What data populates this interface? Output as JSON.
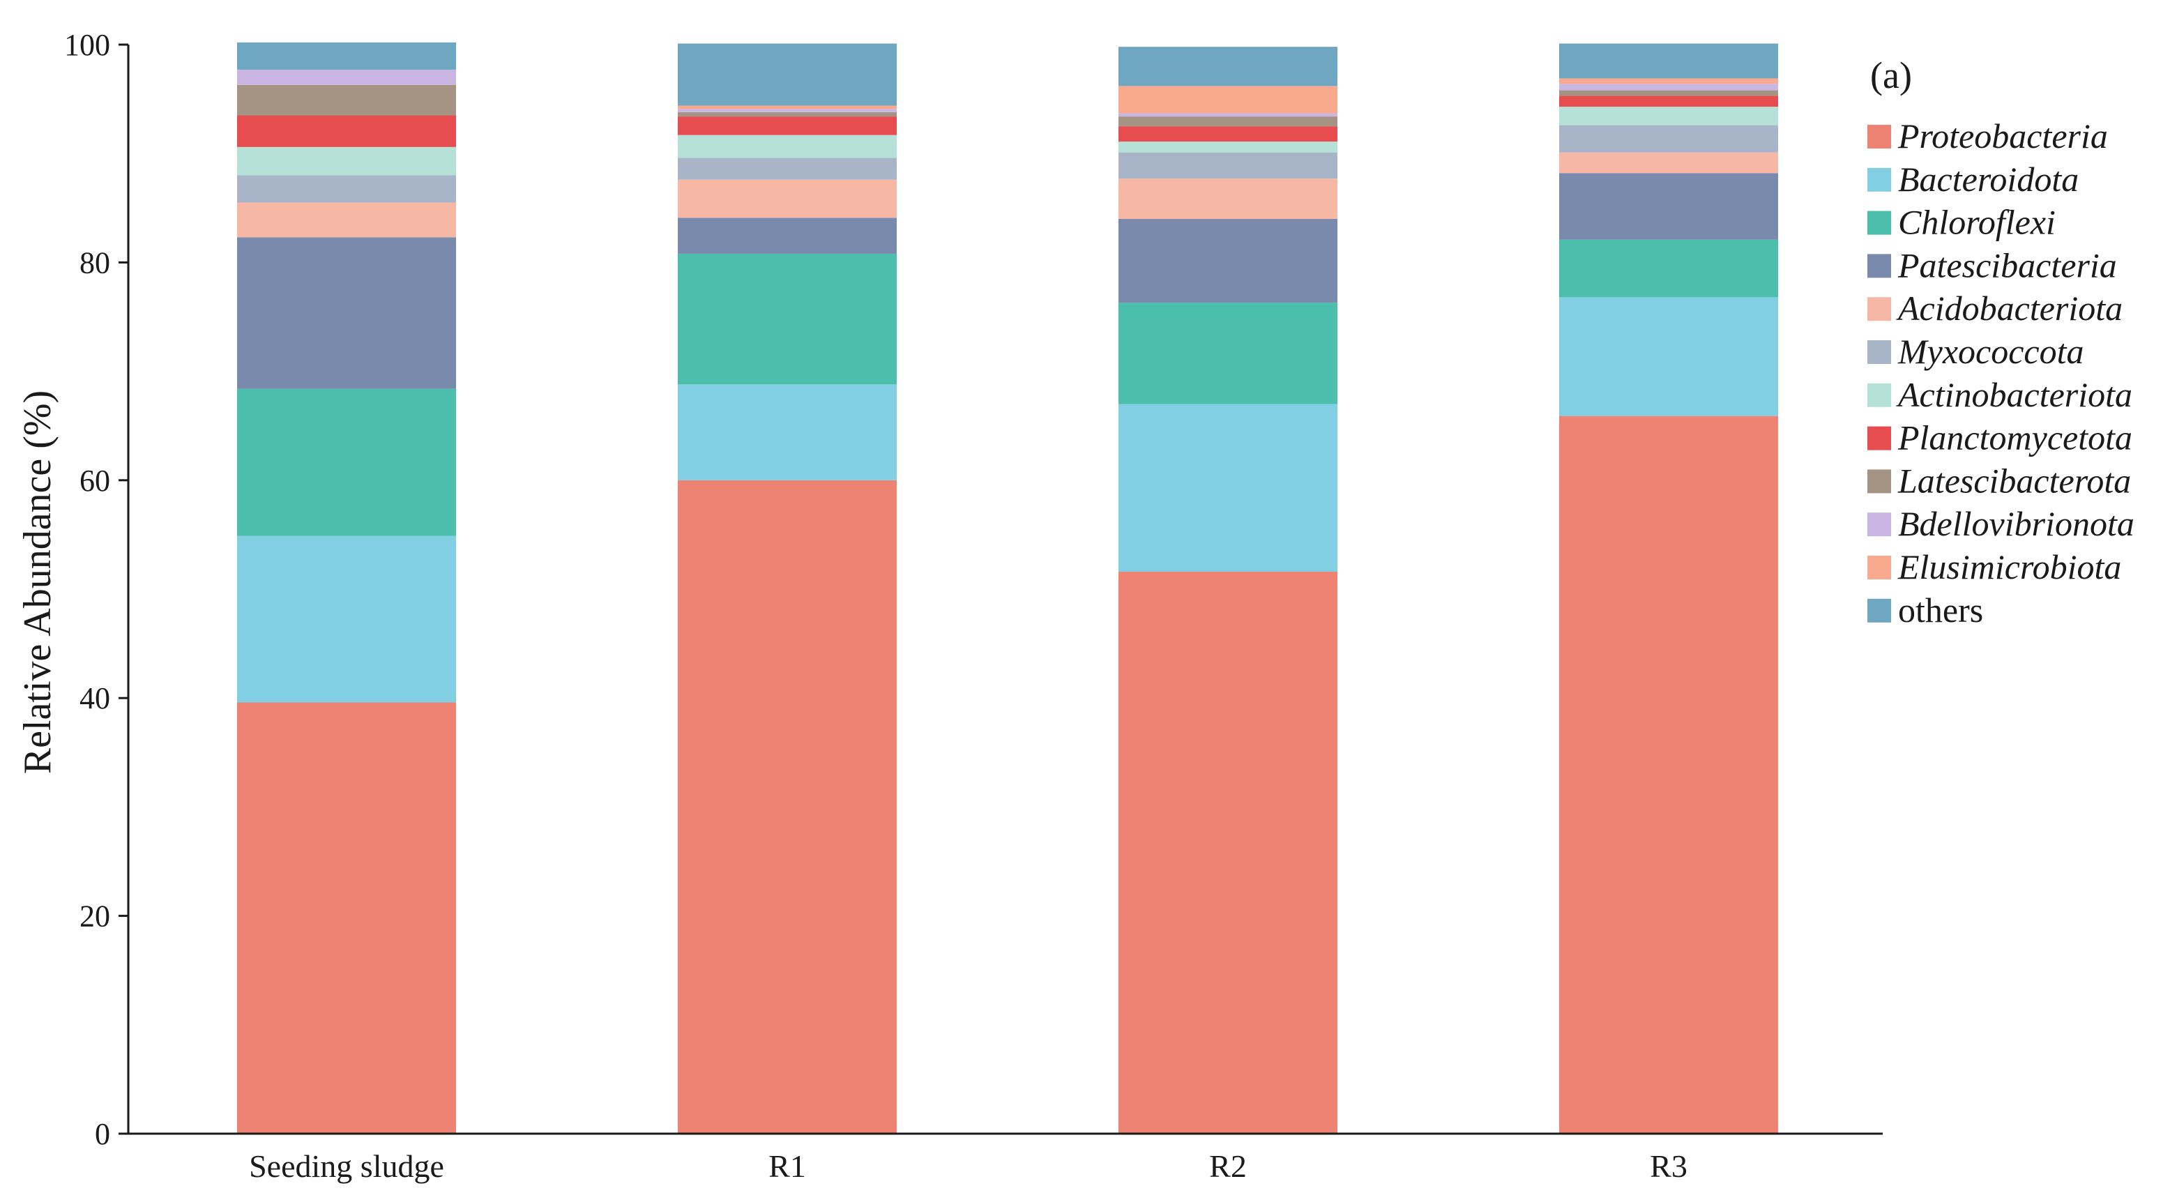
{
  "chart_data": {
    "type": "bar",
    "stacked": true,
    "panel_label": "(a)",
    "ylabel": "Relative Abundance (%)",
    "xlabel": "",
    "ylim": [
      0,
      100
    ],
    "yticks": [
      0,
      20,
      40,
      60,
      80,
      100
    ],
    "grid": false,
    "legend_position": "right",
    "categories": [
      "Seeding sludge",
      "R1",
      "R2",
      "R3"
    ],
    "series": [
      {
        "name": "Proteobacteria",
        "italic": true,
        "color": "#EE8273",
        "values": [
          39.6,
          60.0,
          51.6,
          65.9
        ]
      },
      {
        "name": "Bacteroidota",
        "italic": true,
        "color": "#82CFE3",
        "values": [
          15.3,
          8.8,
          15.4,
          10.9
        ]
      },
      {
        "name": "Chloroflexi",
        "italic": true,
        "color": "#4BBFAB",
        "values": [
          13.5,
          12.0,
          9.3,
          5.3
        ]
      },
      {
        "name": "Patescibacteria",
        "italic": true,
        "color": "#7A8AAD",
        "values": [
          13.9,
          3.3,
          7.7,
          6.1
        ]
      },
      {
        "name": "Acidobacteriota",
        "italic": true,
        "color": "#F6B8A5",
        "values": [
          3.2,
          3.5,
          3.7,
          1.9
        ]
      },
      {
        "name": "Myxococcota",
        "italic": true,
        "color": "#A8B4C8",
        "values": [
          2.5,
          2.0,
          2.4,
          2.5
        ]
      },
      {
        "name": "Actinobacteriota",
        "italic": true,
        "color": "#B5E1D6",
        "values": [
          2.6,
          2.1,
          1.0,
          1.7
        ]
      },
      {
        "name": "Planctomycetota",
        "italic": true,
        "color": "#E74C4F",
        "values": [
          2.9,
          1.7,
          1.4,
          1.0
        ]
      },
      {
        "name": "Latescibacterota",
        "italic": true,
        "color": "#A59483",
        "values": [
          2.8,
          0.4,
          0.9,
          0.5
        ]
      },
      {
        "name": "Bdellovibrionota",
        "italic": true,
        "color": "#C9B6E3",
        "values": [
          1.4,
          0.3,
          0.3,
          0.6
        ]
      },
      {
        "name": "Elusimicrobiota",
        "italic": true,
        "color": "#F9A98E",
        "values": [
          0.0,
          0.3,
          2.5,
          0.5
        ]
      },
      {
        "name": "others",
        "italic": false,
        "color": "#6FA6C2",
        "values": [
          2.5,
          5.7,
          3.6,
          3.2
        ]
      }
    ]
  }
}
